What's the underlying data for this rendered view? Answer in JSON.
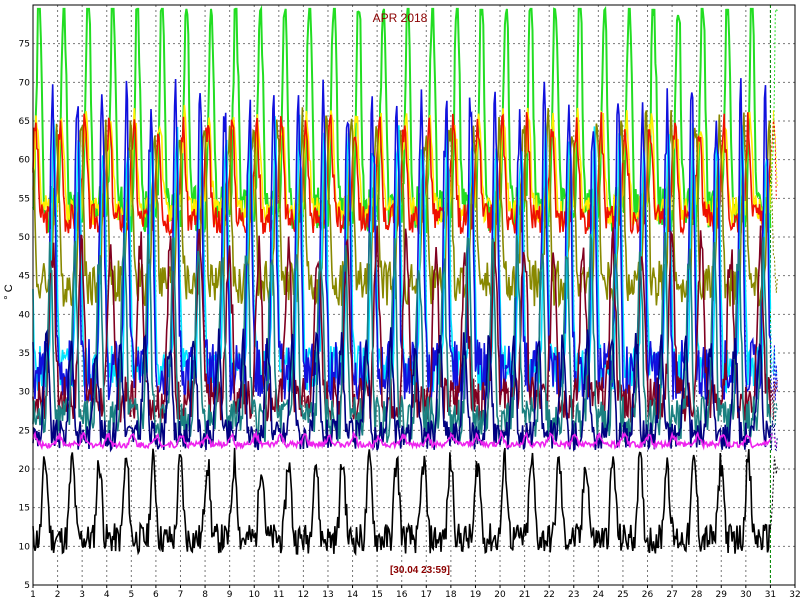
{
  "chart_data": {
    "type": "line",
    "title": "APR 2018",
    "ylabel": "° C",
    "xlabel": "",
    "timestamp_label": "[30.04 23:59]",
    "xlim": [
      1,
      32
    ],
    "ylim": [
      5,
      80
    ],
    "x_ticks": [
      "1",
      "2",
      "3",
      "4",
      "5",
      "6",
      "7",
      "8",
      "9",
      "10",
      "11",
      "12",
      "13",
      "14",
      "15",
      "16",
      "17",
      "18",
      "19",
      "20",
      "21",
      "22",
      "23",
      "24",
      "25",
      "26",
      "27",
      "28",
      "29",
      "30",
      "31",
      "32"
    ],
    "y_ticks": [
      "5",
      "10",
      "15",
      "20",
      "25",
      "30",
      "35",
      "40",
      "45",
      "50",
      "55",
      "60",
      "65",
      "70",
      "75"
    ],
    "grid": true,
    "current_marker_day": 31,
    "series": [
      {
        "color": "#22dd22",
        "base": 62,
        "amp": 14,
        "noise": 3,
        "period": 1.0,
        "phase": 0.0,
        "seed": 1
      },
      {
        "color": "#ffee00",
        "base": 57,
        "amp": 6,
        "noise": 2,
        "period": 1.0,
        "phase": 0.1,
        "seed": 2
      },
      {
        "color": "#ee1100",
        "base": 56,
        "amp": 6,
        "noise": 2,
        "period": 1.0,
        "phase": 0.15,
        "seed": 3
      },
      {
        "color": "#888800",
        "base": 50,
        "amp": 10,
        "noise": 3,
        "period": 1.0,
        "phase": 0.3,
        "seed": 4
      },
      {
        "color": "#00e5ff",
        "base": 42,
        "amp": 15,
        "noise": 3,
        "period": 1.0,
        "phase": 0.4,
        "seed": 5
      },
      {
        "color": "#1111dd",
        "base": 43,
        "amp": 17,
        "noise": 4,
        "period": 1.0,
        "phase": 0.45,
        "seed": 6
      },
      {
        "color": "#800020",
        "base": 35,
        "amp": 10,
        "noise": 3,
        "period": 1.2,
        "phase": 0.6,
        "seed": 7
      },
      {
        "color": "#1a8080",
        "base": 33,
        "amp": 11,
        "noise": 3,
        "period": 1.0,
        "phase": 0.55,
        "seed": 8
      },
      {
        "color": "#000080",
        "base": 28,
        "amp": 6,
        "noise": 2,
        "period": 1.0,
        "phase": 0.7,
        "seed": 9
      },
      {
        "color": "#ee22ee",
        "base": 23.5,
        "amp": 0.6,
        "noise": 0.4,
        "period": 1.0,
        "phase": 0.2,
        "seed": 10
      },
      {
        "color": "#000000",
        "base": 14,
        "amp": 5,
        "noise": 2,
        "period": 1.1,
        "phase": 0.8,
        "seed": 11
      }
    ]
  }
}
